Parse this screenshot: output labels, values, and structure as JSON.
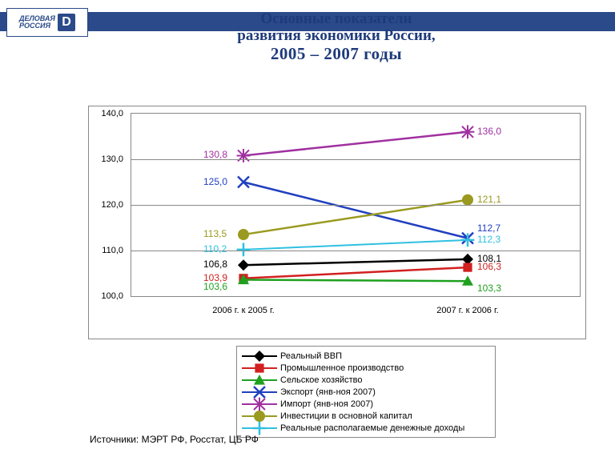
{
  "logo_text": "ДЕЛОВАЯ<br>РОССИЯ",
  "title": {
    "l1": "Основные показатели",
    "l2": "развития экономики России,",
    "l3": "2005 – 2007 годы"
  },
  "source": "Источники: МЭРТ РФ, Росстат, ЦБ РФ",
  "chart": {
    "type": "line",
    "ylim": [
      100,
      140
    ],
    "ytick_step": 10,
    "yticks": [
      "100,0",
      "110,0",
      "120,0",
      "130,0",
      "140,0"
    ],
    "categories": [
      "2006 г. к 2005 г.",
      "2007 г. к 2006 г."
    ],
    "x_positions": [
      0.25,
      0.75
    ],
    "background": "#ffffff",
    "grid_color": "#888888",
    "series": [
      {
        "name": "Реальный ВВП",
        "values": [
          106.8,
          108.1
        ],
        "color": "#000000",
        "marker": "diamond",
        "line_width": 2.5,
        "labels": [
          {
            "text": "106,8",
            "pos": "left",
            "color": "#000000"
          },
          {
            "text": "108,1",
            "pos": "right",
            "color": "#000000"
          }
        ]
      },
      {
        "name": "Промышленное производство",
        "values": [
          103.9,
          106.3
        ],
        "color": "#d22020",
        "marker": "square",
        "line_width": 2.5,
        "labels": [
          {
            "text": "103,9",
            "pos": "left",
            "color": "#d22020"
          },
          {
            "text": "106,3",
            "pos": "right",
            "color": "#d22020"
          }
        ]
      },
      {
        "name": "Сельское хозяйство",
        "values": [
          103.6,
          103.3
        ],
        "color": "#1fa01f",
        "marker": "triangle",
        "line_width": 2.5,
        "labels": [
          {
            "text": "103,6",
            "pos": "left-below",
            "color": "#1fa01f"
          },
          {
            "text": "103,3",
            "pos": "right-below",
            "color": "#1fa01f"
          }
        ]
      },
      {
        "name": "Экспорт (янв-ноя 2007)",
        "values": [
          125.0,
          112.7
        ],
        "color": "#2040c0",
        "marker": "x",
        "line_width": 2.5,
        "labels": [
          {
            "text": "125,0",
            "pos": "left",
            "color": "#2040c0"
          },
          {
            "text": "112,7",
            "pos": "right-above",
            "color": "#2040c0"
          }
        ]
      },
      {
        "name": "Импорт (янв-ноя 2007)",
        "values": [
          130.8,
          136.0
        ],
        "color": "#a030a0",
        "marker": "star",
        "line_width": 2.5,
        "labels": [
          {
            "text": "130,8",
            "pos": "left",
            "color": "#a030a0"
          },
          {
            "text": "136,0",
            "pos": "right",
            "color": "#a030a0"
          }
        ]
      },
      {
        "name": "Инвестиции в основной капитал",
        "values": [
          113.5,
          121.1
        ],
        "color": "#9a9a20",
        "marker": "circle",
        "line_width": 2.5,
        "labels": [
          {
            "text": "113,5",
            "pos": "left",
            "color": "#9a9a20"
          },
          {
            "text": "121,1",
            "pos": "right",
            "color": "#9a9a20"
          }
        ]
      },
      {
        "name": "Реальные располагаемые денежные доходы",
        "values": [
          110.2,
          112.3
        ],
        "color": "#30c0e0",
        "marker": "plus",
        "line_width": 2,
        "labels": [
          {
            "text": "110,2",
            "pos": "left",
            "color": "#30c0e0"
          },
          {
            "text": "112,3",
            "pos": "right",
            "color": "#30c0e0"
          }
        ]
      }
    ]
  }
}
